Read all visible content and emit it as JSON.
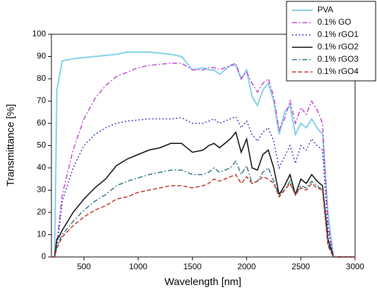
{
  "chart_data": {
    "type": "line",
    "x_label": "Wavelength [nm]",
    "y_label": "Transmittance [%]",
    "xlim": [
      200,
      3000
    ],
    "ylim": [
      0,
      100
    ],
    "xticks": [
      500,
      1000,
      1500,
      2000,
      2500,
      3000
    ],
    "yticks": [
      0,
      10,
      20,
      30,
      40,
      50,
      60,
      70,
      80,
      90,
      100
    ],
    "legend": "upper right",
    "x": [
      200,
      230,
      250,
      270,
      300,
      400,
      500,
      600,
      700,
      800,
      900,
      1000,
      1100,
      1200,
      1300,
      1400,
      1500,
      1600,
      1650,
      1700,
      1750,
      1800,
      1850,
      1900,
      1950,
      2000,
      2050,
      2100,
      2150,
      2200,
      2250,
      2300,
      2350,
      2400,
      2450,
      2500,
      2550,
      2600,
      2650,
      2700,
      2750,
      2800,
      3000
    ],
    "series": [
      {
        "name": "PVA",
        "color": "#7fd0e8",
        "dash": "solid",
        "width": 2,
        "values": [
          0,
          0,
          75,
          80,
          88,
          89,
          89.5,
          90,
          90.5,
          91,
          92,
          92,
          92,
          91.5,
          91,
          90,
          84,
          85,
          84,
          84,
          82,
          84,
          86,
          86,
          80,
          84,
          72,
          68,
          75,
          78,
          70,
          55,
          65,
          68,
          55,
          60,
          58,
          62,
          58,
          55,
          20,
          0,
          0
        ]
      },
      {
        "name": "0.1% GO",
        "color": "#c040d0",
        "dash": "dashdot",
        "width": 1.5,
        "values": [
          0,
          0,
          5,
          15,
          28,
          48,
          62,
          71,
          77,
          81,
          83,
          85,
          86,
          86.5,
          87,
          87,
          84,
          84,
          85,
          85,
          84,
          85,
          86,
          87,
          80,
          83,
          78,
          74,
          78,
          80,
          72,
          57,
          62,
          70,
          60,
          67,
          64,
          70,
          66,
          60,
          15,
          0,
          0
        ]
      },
      {
        "name": "0.1% rGO1",
        "color": "#3030c0",
        "dash": "dot",
        "width": 1.5,
        "values": [
          0,
          0,
          5,
          12,
          25,
          40,
          50,
          55,
          58,
          60,
          61,
          61.5,
          62,
          62,
          62,
          62.5,
          60,
          60,
          61,
          62,
          60,
          61,
          62,
          63,
          58,
          61,
          55,
          52,
          56,
          58,
          52,
          40,
          45,
          50,
          42,
          50,
          48,
          53,
          50,
          48,
          12,
          0,
          0
        ]
      },
      {
        "name": "0.1% rGO2",
        "color": "#000000",
        "dash": "solid",
        "width": 1.5,
        "values": [
          0,
          0,
          8,
          9,
          12,
          20,
          26,
          31,
          35,
          41,
          44,
          46,
          48,
          49,
          51,
          51,
          47,
          48,
          50,
          51,
          49,
          51,
          53,
          56,
          47,
          53,
          40,
          39,
          46,
          48,
          40,
          28,
          32,
          37,
          28,
          35,
          33,
          37,
          34,
          32,
          8,
          0,
          0
        ]
      },
      {
        "name": "0.1% rGO3",
        "color": "#2a7080",
        "dash": "dashdot",
        "width": 1.5,
        "values": [
          0,
          0,
          5,
          7,
          10,
          16,
          21,
          25,
          28,
          32,
          34,
          35.5,
          37,
          38,
          39,
          39,
          37,
          37,
          38,
          40,
          38,
          39,
          40,
          43,
          37,
          41,
          33,
          34,
          38,
          40,
          34,
          28,
          30,
          34,
          28,
          32,
          31,
          34,
          32,
          30,
          6,
          0,
          0
        ]
      },
      {
        "name": "0.1% rGO4",
        "color": "#c03020",
        "dash": "dash",
        "width": 1.5,
        "values": [
          0,
          0,
          4,
          6,
          9,
          14,
          18,
          21,
          23,
          26,
          27,
          29,
          30,
          31,
          32,
          32,
          31,
          32,
          33,
          35,
          34,
          35,
          36,
          37,
          33,
          36,
          33,
          34,
          36,
          35,
          33,
          27,
          30,
          33,
          28,
          31,
          30,
          33,
          31,
          30,
          5,
          0,
          0
        ]
      }
    ]
  }
}
